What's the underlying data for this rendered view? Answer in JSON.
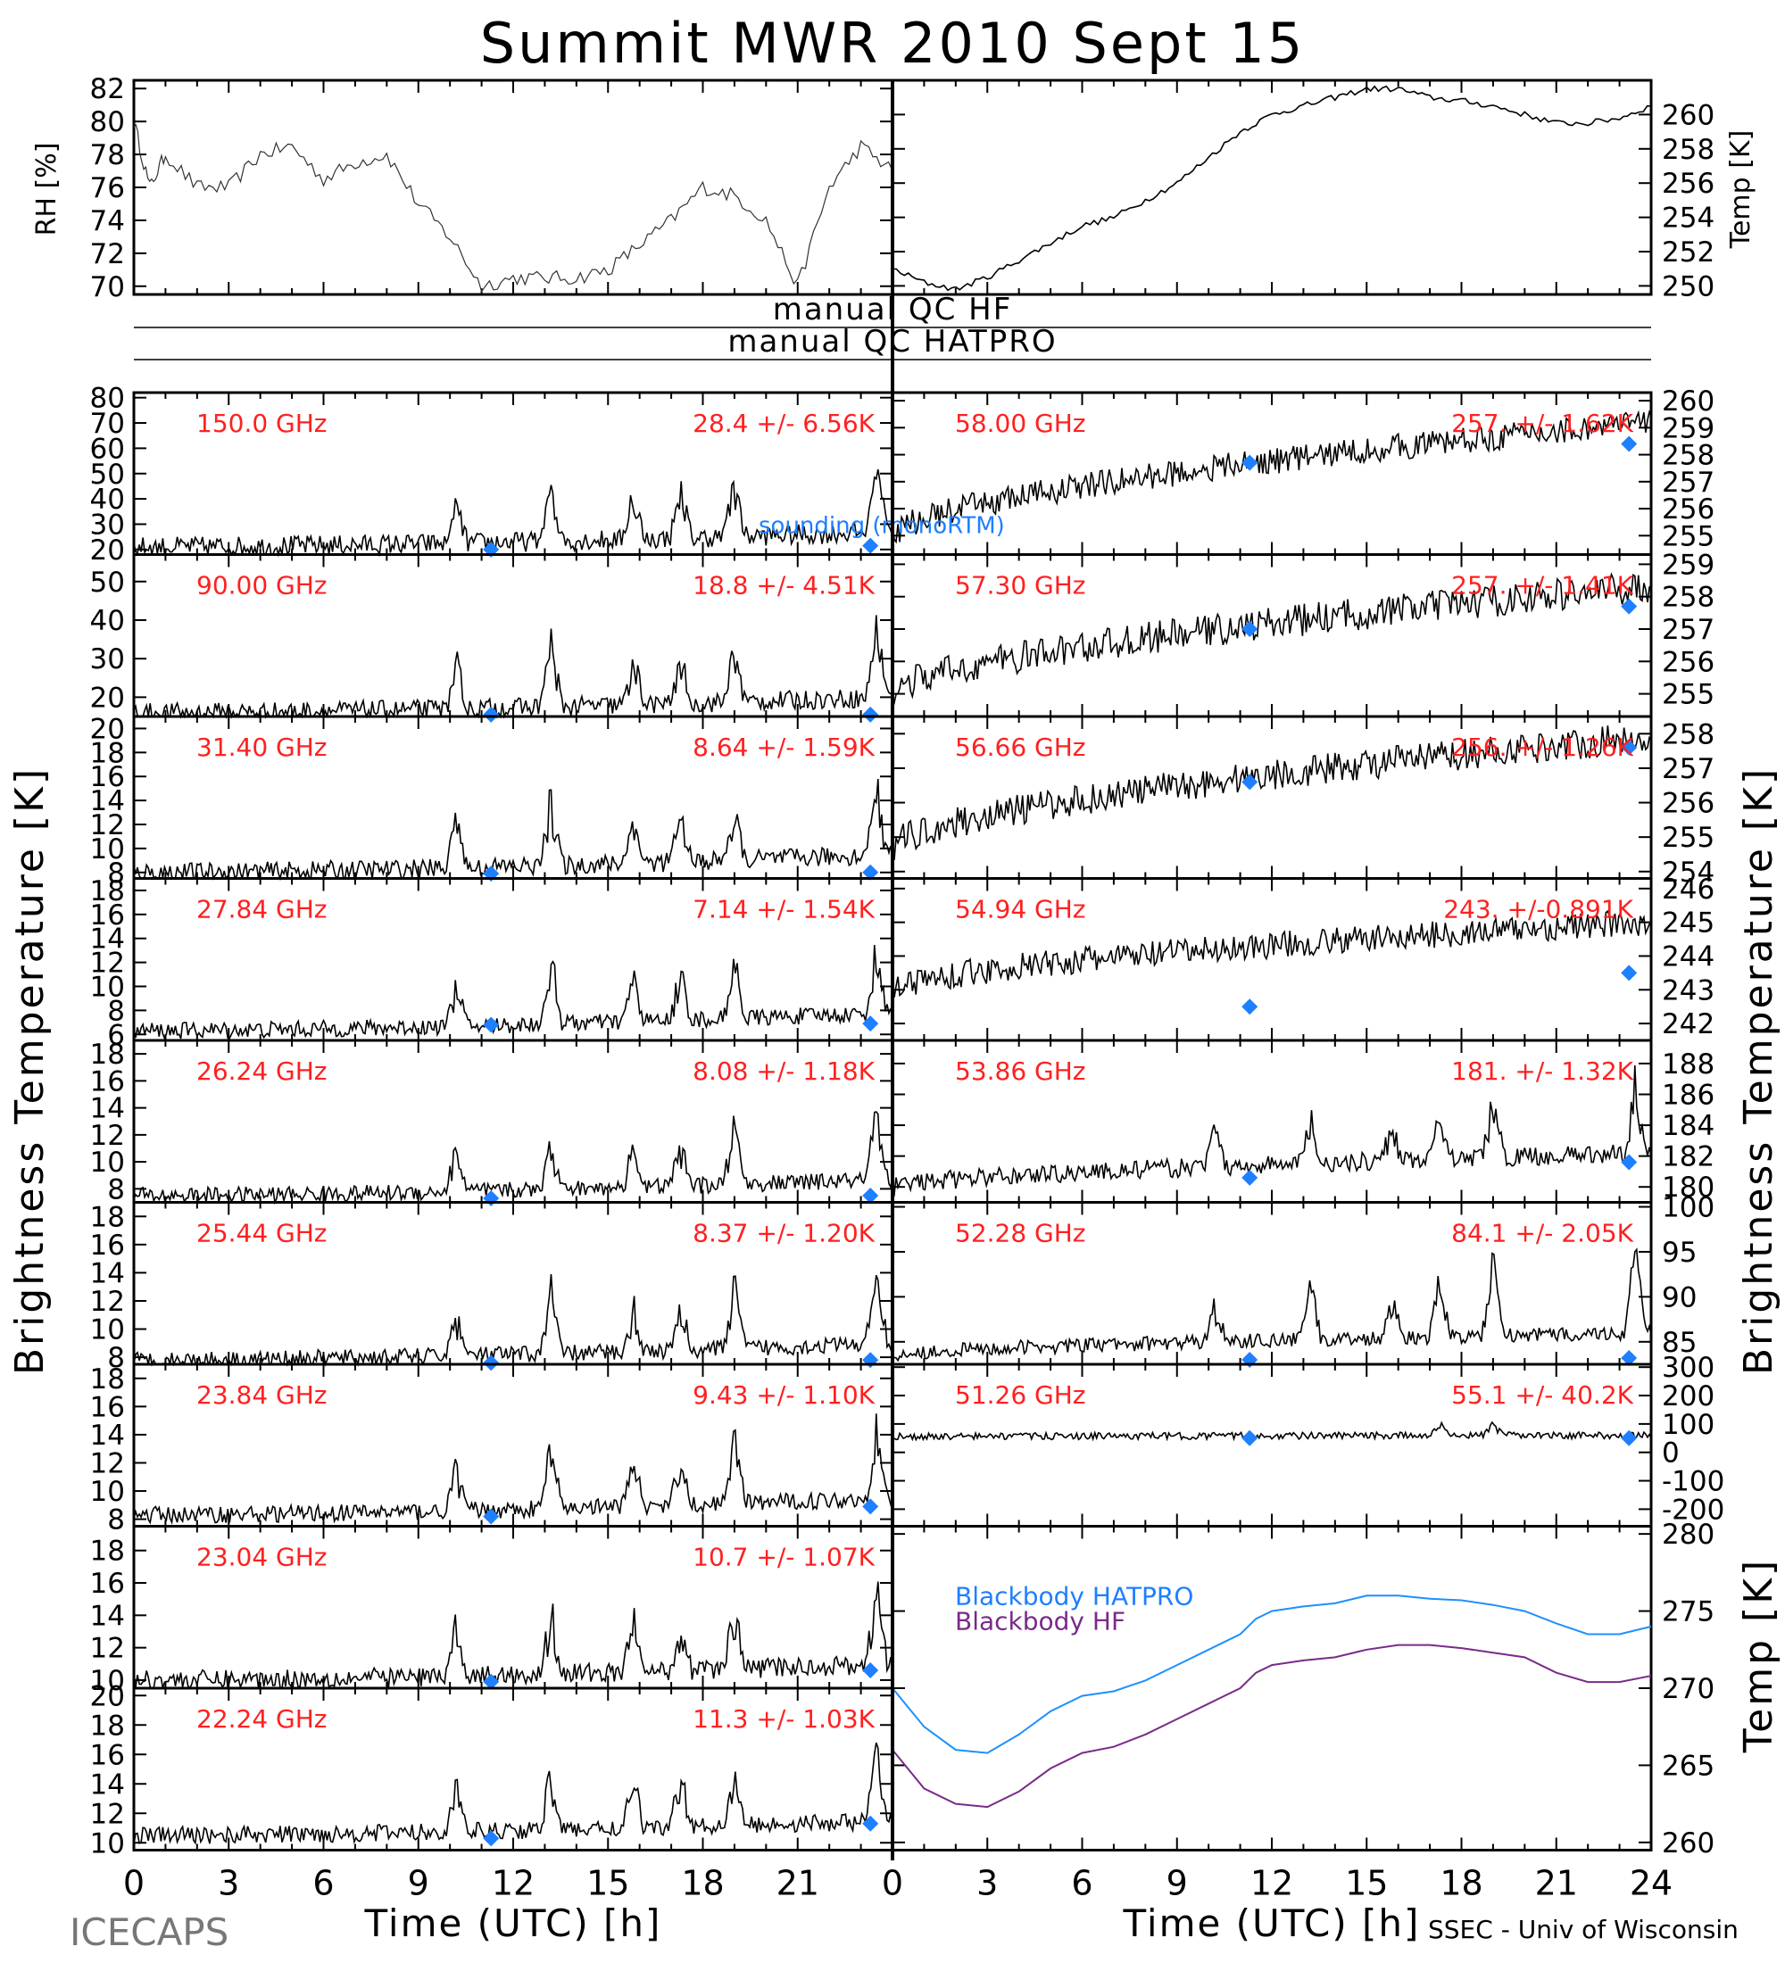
{
  "title": "Summit MWR 2010 Sept 15",
  "footer": {
    "left": "ICECAPS",
    "right": "SSEC - Univ of Wisconsin"
  },
  "colors": {
    "label": "#ff2020",
    "sounding": "#1e7fff",
    "bb_hatpro": "#1e90ff",
    "bb_hf": "#7a2a8a"
  },
  "axes": {
    "xlabel": "Time (UTC) [h]",
    "xticks": [
      "0",
      "3",
      "6",
      "9",
      "12",
      "15",
      "18",
      "21",
      "24"
    ],
    "left_xticks": [
      "0",
      "3",
      "6",
      "9",
      "12",
      "15",
      "18",
      "21"
    ],
    "ylabel_left": "Brightness Temperature [K]",
    "ylabel_right": "Brightness Temperature [K]",
    "rh_label": "RH [%]",
    "temp_label": "Temp [K]"
  },
  "qc": {
    "hf": "manual QC HF",
    "hatpro": "manual QC HATPRO"
  },
  "sounding_label": "sounding (monoRTM)",
  "chart_data": [
    {
      "type": "line",
      "name": "rh",
      "ylabel": "RH [%]",
      "yticks": [
        "70",
        "72",
        "74",
        "76",
        "78",
        "80",
        "82"
      ],
      "ylim": [
        69.5,
        82.5
      ],
      "x": [
        0,
        0.5,
        1,
        2,
        3,
        4,
        5,
        6,
        7,
        8,
        9,
        10,
        11,
        12,
        13,
        14,
        15,
        16,
        17,
        18,
        19,
        20,
        21,
        22,
        23,
        24
      ],
      "values": [
        80,
        76,
        78,
        76,
        76,
        78,
        78.5,
        76.5,
        77.5,
        78,
        75,
        73,
        70,
        70.5,
        70.5,
        70.5,
        71,
        72.5,
        74,
        76,
        75.5,
        74,
        70,
        76,
        78.5,
        77
      ]
    },
    {
      "type": "line",
      "name": "temp",
      "ylabel": "Temp [K]",
      "yticks": [
        "250",
        "252",
        "254",
        "256",
        "258",
        "260"
      ],
      "ylim": [
        249.5,
        262
      ],
      "x": [
        0,
        1,
        2,
        3,
        4,
        5,
        6,
        7,
        8,
        9,
        10,
        11,
        12,
        13,
        14,
        15,
        16,
        17,
        18,
        19,
        20,
        21,
        22,
        23,
        24
      ],
      "values": [
        251,
        250.2,
        249.8,
        250.5,
        251.5,
        252.5,
        253.5,
        254,
        255,
        256,
        257.5,
        259,
        260,
        260.5,
        261,
        261.5,
        261.5,
        261,
        260.8,
        260.5,
        260,
        259.5,
        259.5,
        259.8,
        260.5
      ]
    },
    {
      "type": "line",
      "panel": "left",
      "freq": "150.0 GHz",
      "stats": "28.4 +/- 6.56K",
      "yticks": [
        "20",
        "30",
        "40",
        "50",
        "60",
        "70",
        "80"
      ],
      "ylim": [
        18,
        82
      ],
      "base": 21,
      "trend": 6,
      "noise": 4,
      "spikes": [
        [
          10.2,
          20
        ],
        [
          13.2,
          30
        ],
        [
          15.8,
          25
        ],
        [
          17.3,
          25
        ],
        [
          19,
          30
        ],
        [
          23.5,
          45
        ]
      ],
      "sounding": [
        [
          11.3,
          20
        ],
        [
          23.3,
          21.5
        ]
      ]
    },
    {
      "type": "line",
      "panel": "left",
      "freq": "90.00 GHz",
      "stats": "18.8 +/- 4.51K",
      "yticks": [
        "20",
        "30",
        "40",
        "50"
      ],
      "ylim": [
        15,
        57
      ],
      "base": 16,
      "trend": 4,
      "noise": 2.5,
      "spikes": [
        [
          10.2,
          14
        ],
        [
          13.2,
          22
        ],
        [
          15.8,
          14
        ],
        [
          17.3,
          14
        ],
        [
          19,
          18
        ],
        [
          23.5,
          25
        ]
      ],
      "sounding": [
        [
          11.3,
          15.5
        ],
        [
          23.3,
          15.5
        ]
      ]
    },
    {
      "type": "line",
      "panel": "left",
      "freq": "31.40 GHz",
      "stats": "8.64 +/- 1.59K",
      "yticks": [
        "8",
        "10",
        "12",
        "14",
        "16",
        "18",
        "20"
      ],
      "ylim": [
        7.5,
        21
      ],
      "base": 8,
      "trend": 1.5,
      "noise": 0.8,
      "spikes": [
        [
          10.2,
          6
        ],
        [
          13.2,
          8
        ],
        [
          15.8,
          5
        ],
        [
          17.3,
          5
        ],
        [
          19,
          5
        ],
        [
          23.5,
          8
        ]
      ],
      "sounding": [
        [
          11.3,
          7.9
        ],
        [
          23.3,
          8.0
        ]
      ]
    },
    {
      "type": "line",
      "panel": "left",
      "freq": "27.84 GHz",
      "stats": "7.14 +/- 1.54K",
      "yticks": [
        "6",
        "8",
        "10",
        "12",
        "14",
        "16",
        "18"
      ],
      "ylim": [
        5.5,
        19
      ],
      "base": 6.3,
      "trend": 1.5,
      "noise": 0.7,
      "spikes": [
        [
          10.2,
          5
        ],
        [
          13.2,
          7
        ],
        [
          15.8,
          5
        ],
        [
          17.3,
          5
        ],
        [
          19,
          6
        ],
        [
          23.5,
          7
        ]
      ],
      "sounding": [
        [
          11.3,
          6.8
        ],
        [
          23.3,
          6.9
        ]
      ]
    },
    {
      "type": "line",
      "panel": "left",
      "freq": "26.24 GHz",
      "stats": "8.08 +/- 1.18K",
      "yticks": [
        "8",
        "10",
        "12",
        "14",
        "16",
        "18"
      ],
      "ylim": [
        7,
        19
      ],
      "base": 7.5,
      "trend": 1.2,
      "noise": 0.6,
      "spikes": [
        [
          10.2,
          4
        ],
        [
          13.2,
          5
        ],
        [
          15.8,
          4
        ],
        [
          17.3,
          4
        ],
        [
          19,
          6
        ],
        [
          23.5,
          6
        ]
      ],
      "sounding": [
        [
          11.3,
          7.3
        ],
        [
          23.3,
          7.5
        ]
      ]
    },
    {
      "type": "line",
      "panel": "left",
      "freq": "25.44 GHz",
      "stats": "8.37 +/- 1.20K",
      "yticks": [
        "8",
        "10",
        "12",
        "14",
        "16",
        "18"
      ],
      "ylim": [
        7.5,
        19
      ],
      "base": 7.8,
      "trend": 1.2,
      "noise": 0.6,
      "spikes": [
        [
          10.2,
          4
        ],
        [
          13.2,
          6
        ],
        [
          15.8,
          4
        ],
        [
          17.3,
          4
        ],
        [
          19,
          6
        ],
        [
          23.5,
          6
        ]
      ],
      "sounding": [
        [
          11.3,
          7.6
        ],
        [
          23.3,
          7.8
        ]
      ]
    },
    {
      "type": "line",
      "panel": "left",
      "freq": "23.84 GHz",
      "stats": "9.43 +/- 1.10K",
      "yticks": [
        "8",
        "10",
        "12",
        "14",
        "16",
        "18"
      ],
      "ylim": [
        7.5,
        19
      ],
      "base": 8.3,
      "trend": 1.2,
      "noise": 0.6,
      "spikes": [
        [
          10.2,
          4
        ],
        [
          13.2,
          6
        ],
        [
          15.8,
          4
        ],
        [
          17.3,
          4
        ],
        [
          19,
          6
        ],
        [
          23.5,
          6
        ]
      ],
      "sounding": [
        [
          11.3,
          8.2
        ],
        [
          23.3,
          8.9
        ]
      ]
    },
    {
      "type": "line",
      "panel": "left",
      "freq": "23.04 GHz",
      "stats": "10.7 +/- 1.07K",
      "yticks": [
        "10",
        "12",
        "14",
        "16",
        "18"
      ],
      "ylim": [
        9.5,
        19.5
      ],
      "base": 10,
      "trend": 1.0,
      "noise": 0.6,
      "spikes": [
        [
          10.2,
          4
        ],
        [
          13.2,
          5
        ],
        [
          15.8,
          4
        ],
        [
          17.3,
          4
        ],
        [
          19,
          5
        ],
        [
          23.5,
          6
        ]
      ],
      "sounding": [
        [
          11.3,
          9.9
        ],
        [
          23.3,
          10.6
        ]
      ]
    },
    {
      "type": "line",
      "panel": "left",
      "freq": "22.24 GHz",
      "stats": "11.3 +/- 1.03K",
      "yticks": [
        "10",
        "12",
        "14",
        "16",
        "18",
        "20"
      ],
      "ylim": [
        9.5,
        20.5
      ],
      "base": 10.5,
      "trend": 1.0,
      "noise": 0.6,
      "spikes": [
        [
          10.2,
          4
        ],
        [
          13.2,
          5
        ],
        [
          15.8,
          4
        ],
        [
          17.3,
          4
        ],
        [
          19,
          5
        ],
        [
          23.5,
          6
        ]
      ],
      "sounding": [
        [
          11.3,
          10.3
        ],
        [
          23.3,
          11.3
        ]
      ]
    },
    {
      "type": "line",
      "panel": "right",
      "freq": "58.00 GHz",
      "stats": "257. +/- 1.62K",
      "yticks": [
        "255",
        "256",
        "257",
        "258",
        "259",
        "260"
      ],
      "ylim": [
        254.3,
        260.3
      ],
      "base": 255,
      "trend": 4.2,
      "noise": 0.5,
      "spikes": [],
      "sounding": [
        [
          11.3,
          257.7
        ],
        [
          23.3,
          258.4
        ]
      ]
    },
    {
      "type": "line",
      "panel": "right",
      "freq": "57.30 GHz",
      "stats": "257. +/- 1.41K",
      "yticks": [
        "255",
        "256",
        "257",
        "258",
        "259"
      ],
      "ylim": [
        254.3,
        259.3
      ],
      "base": 255,
      "trend": 3.3,
      "noise": 0.5,
      "spikes": [],
      "sounding": [
        [
          11.3,
          257
        ],
        [
          23.3,
          257.7
        ]
      ]
    },
    {
      "type": "line",
      "panel": "right",
      "freq": "56.66 GHz",
      "stats": "256. +/- 1.26K",
      "yticks": [
        "254",
        "255",
        "256",
        "257",
        "258"
      ],
      "ylim": [
        253.8,
        258.5
      ],
      "base": 254.7,
      "trend": 3.2,
      "noise": 0.45,
      "spikes": [],
      "sounding": [
        [
          11.3,
          256.6
        ],
        [
          23.3,
          257.6
        ]
      ]
    },
    {
      "type": "line",
      "panel": "right",
      "freq": "54.94 GHz",
      "stats": "243. +/-0.891K",
      "yticks": [
        "242",
        "243",
        "244",
        "245",
        "246"
      ],
      "ylim": [
        241.5,
        246.3
      ],
      "base": 243,
      "trend": 2.0,
      "noise": 0.4,
      "spikes": [],
      "sounding": [
        [
          11.3,
          242.5
        ],
        [
          23.3,
          243.5
        ]
      ]
    },
    {
      "type": "line",
      "panel": "right",
      "freq": "53.86 GHz",
      "stats": "181. +/- 1.32K",
      "yticks": [
        "180",
        "182",
        "184",
        "186",
        "188"
      ],
      "ylim": [
        179,
        189.5
      ],
      "base": 180,
      "trend": 2.2,
      "noise": 0.6,
      "spikes": [
        [
          10.2,
          3
        ],
        [
          13.2,
          4
        ],
        [
          15.8,
          3
        ],
        [
          17.3,
          3
        ],
        [
          19,
          5
        ],
        [
          23.5,
          6
        ]
      ],
      "sounding": [
        [
          11.3,
          180.6
        ],
        [
          23.3,
          181.6
        ]
      ]
    },
    {
      "type": "line",
      "panel": "right",
      "freq": "52.28 GHz",
      "stats": "84.1 +/- 2.05K",
      "yticks": [
        "85",
        "90",
        "95",
        "100"
      ],
      "ylim": [
        82.5,
        100.5
      ],
      "base": 83.5,
      "trend": 2.5,
      "noise": 0.8,
      "spikes": [
        [
          10.2,
          6
        ],
        [
          13.2,
          8
        ],
        [
          15.8,
          6
        ],
        [
          17.3,
          8
        ],
        [
          19,
          10
        ],
        [
          23.5,
          12
        ]
      ],
      "sounding": [
        [
          11.3,
          83
        ],
        [
          23.3,
          83.2
        ]
      ]
    },
    {
      "type": "line",
      "panel": "right",
      "freq": "51.26 GHz",
      "stats": "55.1 +/- 40.2K",
      "yticks": [
        "-200",
        "-100",
        "0",
        "100",
        "200",
        "300"
      ],
      "ylim": [
        -260,
        310
      ],
      "base": 55,
      "trend": 5,
      "noise": 12,
      "spikes": [
        [
          17.3,
          60
        ],
        [
          19,
          60
        ]
      ],
      "sounding": [
        [
          11.3,
          50
        ],
        [
          23.3,
          50
        ]
      ]
    },
    {
      "type": "line",
      "name": "blackbody",
      "ylabel": "Temp [K]",
      "yticks": [
        "260",
        "265",
        "270",
        "275",
        "280"
      ],
      "ylim": [
        259.5,
        280.5
      ],
      "x": [
        0,
        1,
        2,
        3,
        4,
        5,
        6,
        7,
        8,
        9,
        10,
        11,
        11.5,
        12,
        13,
        14,
        15,
        16,
        17,
        18,
        19,
        20,
        21,
        22,
        23,
        24
      ],
      "series": [
        {
          "name": "Blackbody HATPRO",
          "values": [
            270,
            267.5,
            266,
            265.8,
            267,
            268.5,
            269.5,
            269.8,
            270.5,
            271.5,
            272.5,
            273.5,
            274.5,
            275,
            275.3,
            275.5,
            276,
            276,
            275.8,
            275.7,
            275.4,
            275,
            274.2,
            273.5,
            273.5,
            274
          ]
        },
        {
          "name": "Blackbody HF",
          "values": [
            266,
            263.5,
            262.5,
            262.3,
            263.3,
            264.8,
            265.8,
            266.2,
            267,
            268,
            269,
            270,
            271,
            271.5,
            271.8,
            272,
            272.5,
            272.8,
            272.8,
            272.6,
            272.3,
            272,
            271,
            270.4,
            270.4,
            270.8
          ]
        }
      ]
    }
  ]
}
